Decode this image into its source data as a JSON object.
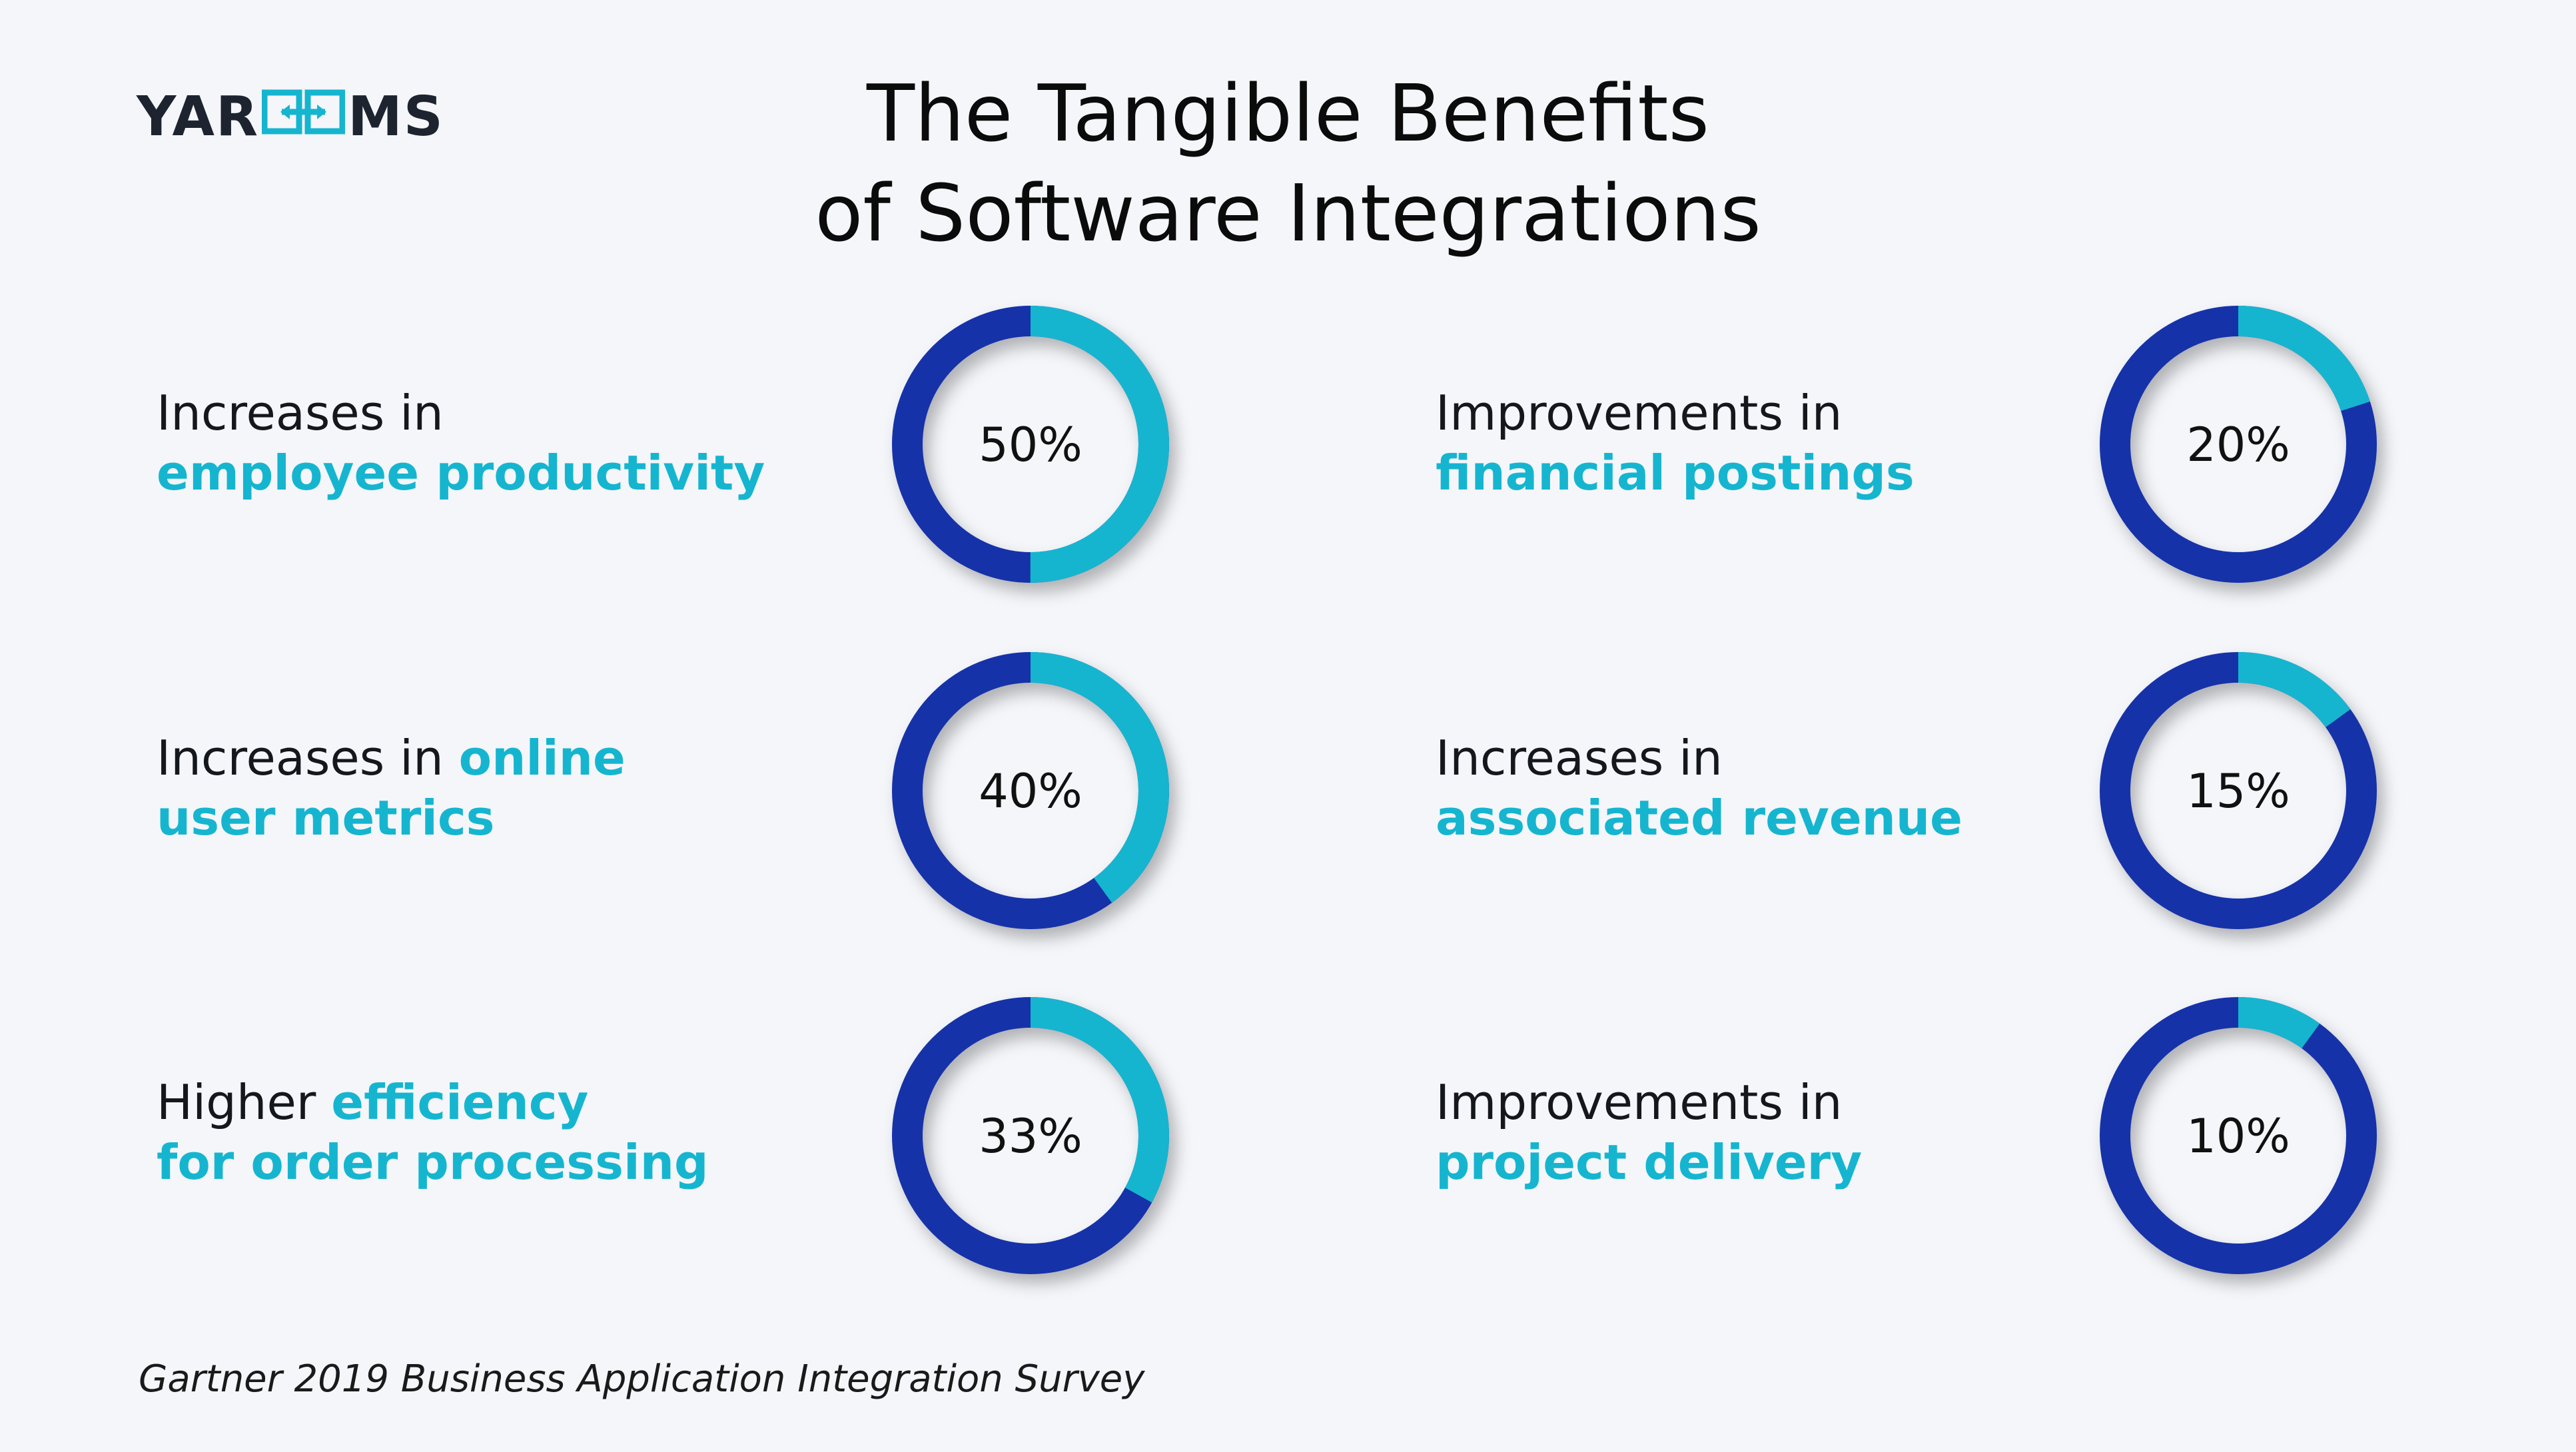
{
  "logo": {
    "text_left": "YAR",
    "text_right": "MS",
    "mark_icon": "link-arrows-icon",
    "colors": {
      "dark": "#1d2430",
      "accent": "#16b5cf"
    }
  },
  "title": {
    "line1": "The Tangible Benefits",
    "line2": "of Software Integrations"
  },
  "source": "Gartner 2019 Business Application Integration Survey",
  "colors": {
    "ring": "#1530a8",
    "segment": "#16b5cf",
    "highlight_text": "#16b5cf"
  },
  "chart_data": {
    "type": "pie",
    "series": [
      {
        "values": [
          50,
          40,
          33,
          20,
          15,
          10
        ]
      }
    ],
    "categories": [
      "Increases in employee productivity",
      "Increases in online user metrics",
      "Higher efficiency for order processing",
      "Improvements in financial postings",
      "Increases in associated revenue",
      "Improvements in project delivery"
    ],
    "value_labels": [
      "50%",
      "40%",
      "33%",
      "20%",
      "15%",
      "10%"
    ],
    "items": [
      {
        "plain_before": "Increases in",
        "highlight": "employee productivity",
        "plain_after": "",
        "break_after_plain": true,
        "value": 50,
        "label": "50%"
      },
      {
        "plain_before": "Increases in ",
        "highlight": "online",
        "highlight2": "user metrics",
        "value": 40,
        "label": "40%"
      },
      {
        "plain_before": "Higher ",
        "highlight": "efficiency",
        "highlight2": "for order processing",
        "value": 33,
        "label": "33%"
      },
      {
        "plain_before": "Improvements in",
        "highlight": "financial postings",
        "break_after_plain": true,
        "value": 20,
        "label": "20%"
      },
      {
        "plain_before": "Increases in",
        "highlight": "associated revenue",
        "break_after_plain": true,
        "value": 15,
        "label": "15%"
      },
      {
        "plain_before": "Improvements in",
        "highlight": "project delivery",
        "break_after_plain": true,
        "value": 10,
        "label": "10%"
      }
    ]
  }
}
